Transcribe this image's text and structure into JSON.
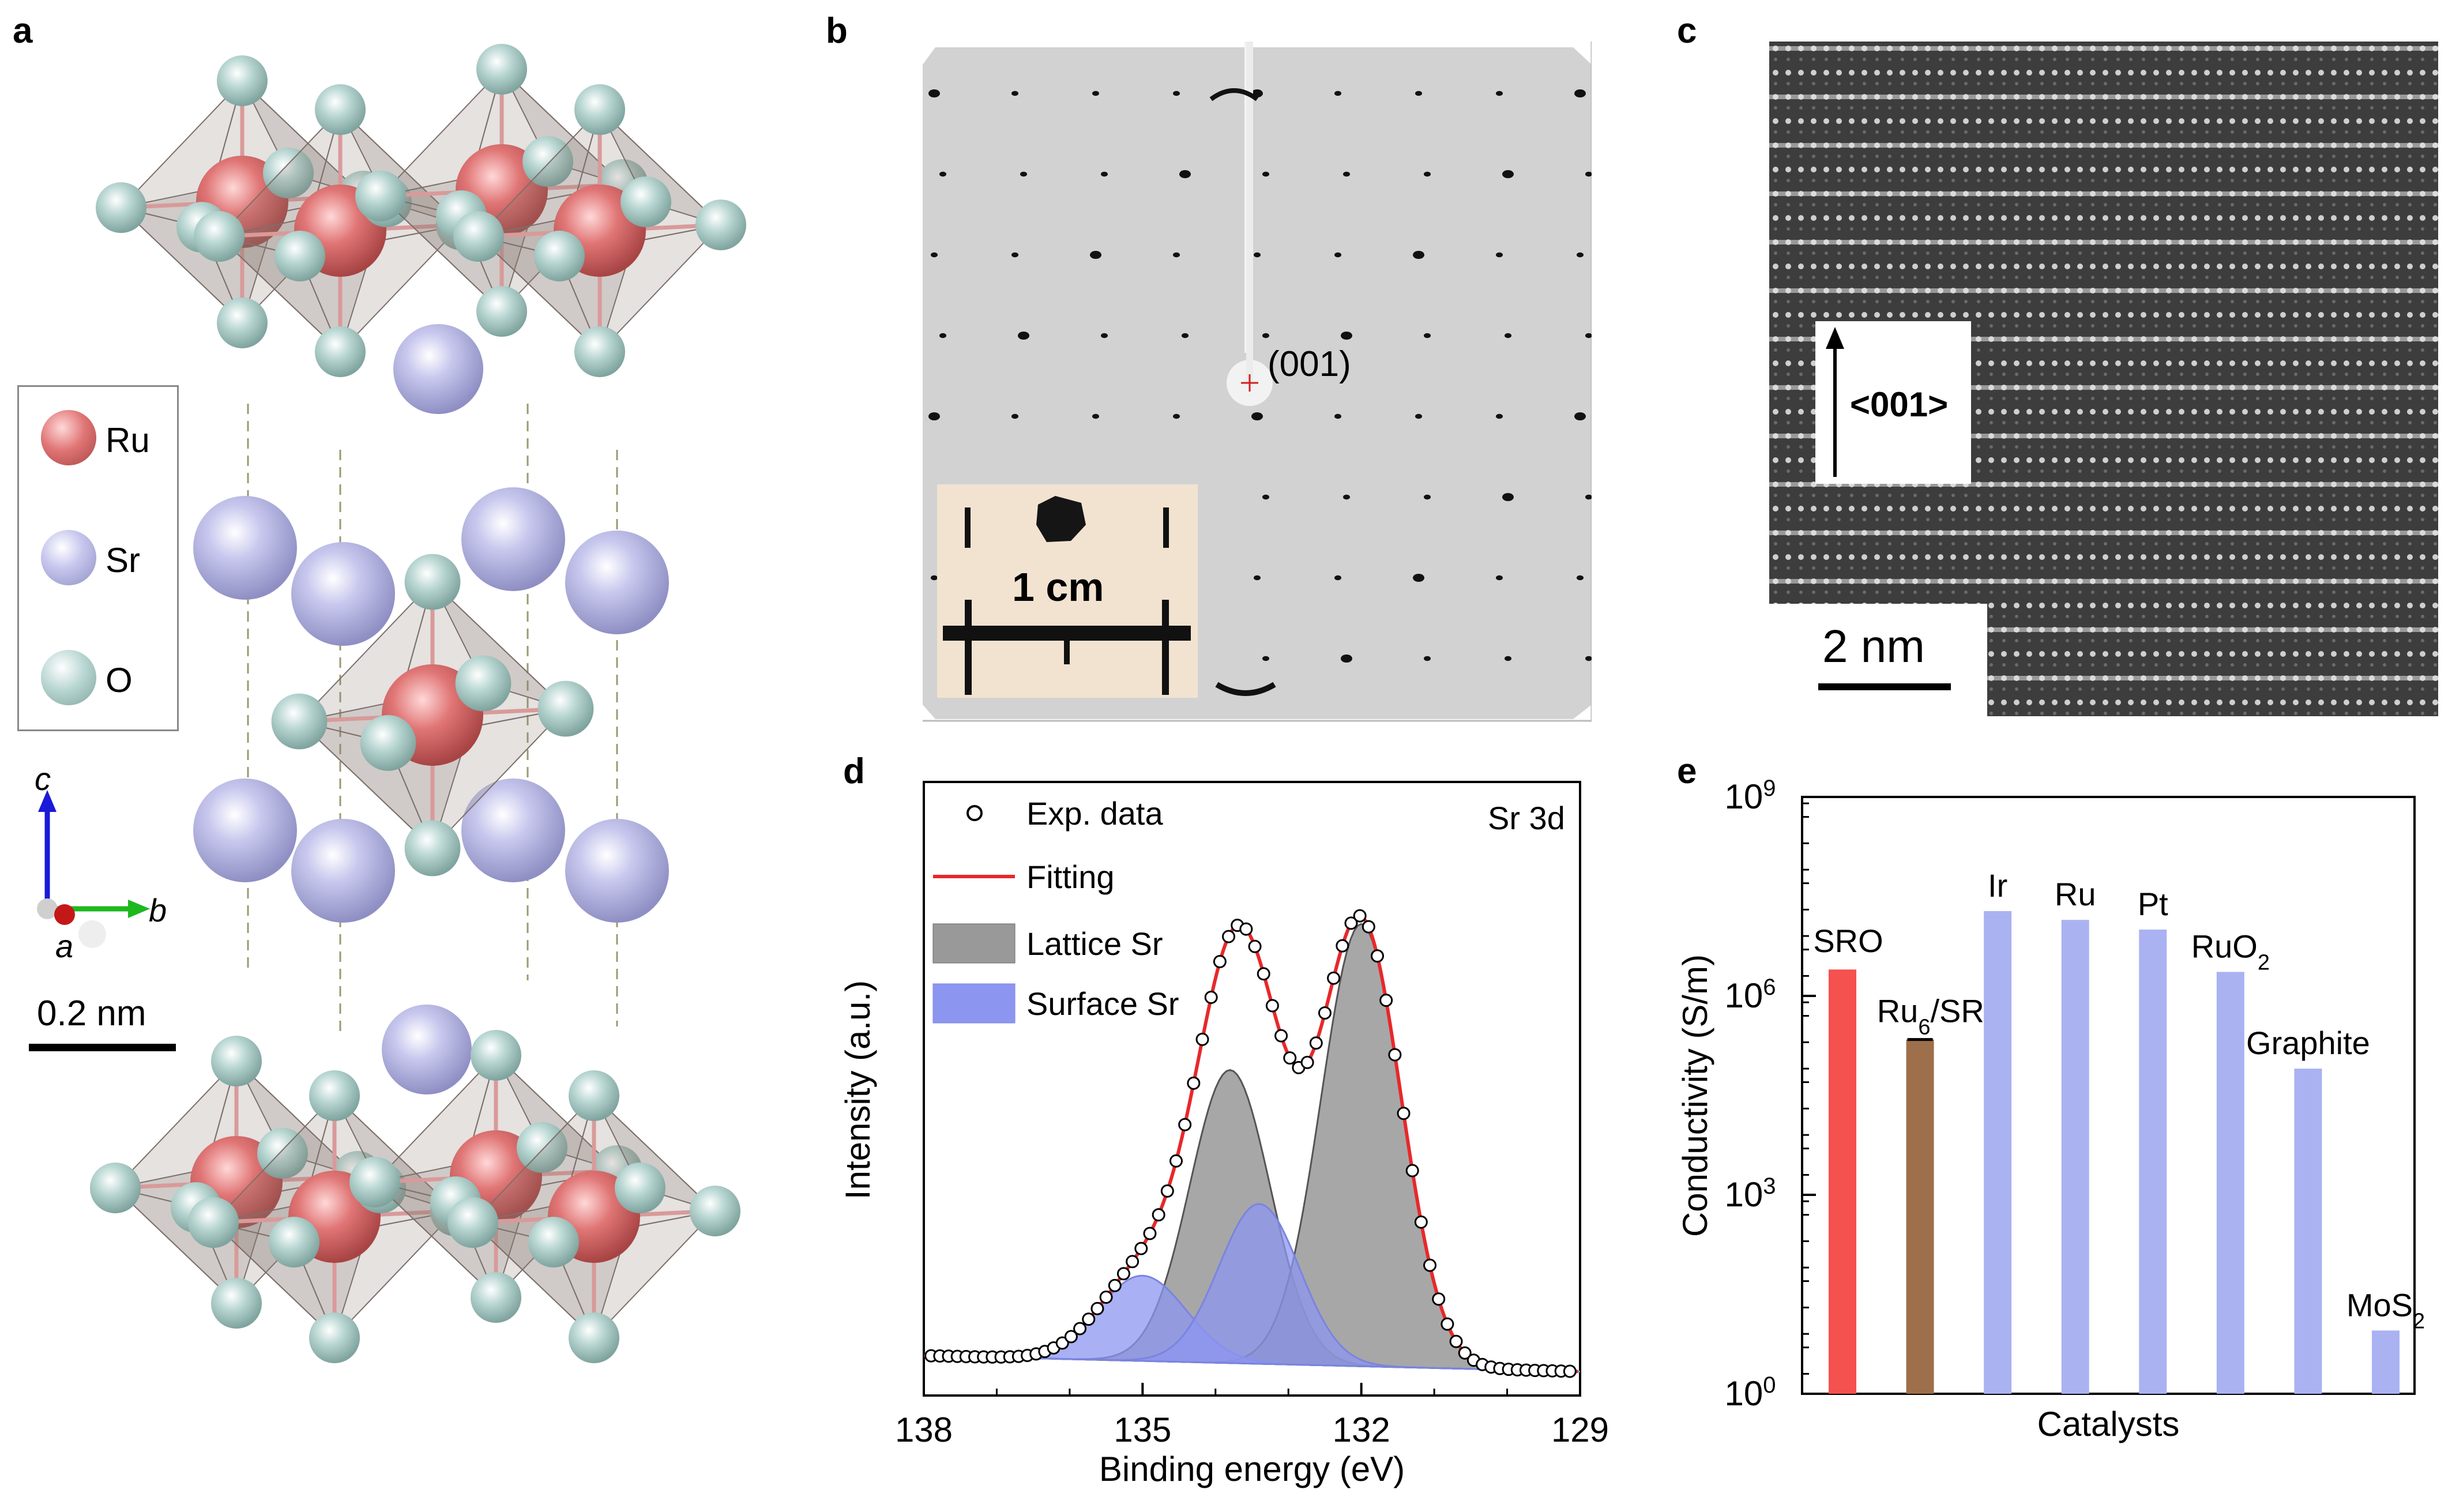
{
  "panel_labels": [
    "a",
    "b",
    "c",
    "d",
    "e"
  ],
  "panel_a": {
    "legend": [
      {
        "name": "Ru",
        "color": "#e07070"
      },
      {
        "name": "Sr",
        "color": "#c6c6ee"
      },
      {
        "name": "O",
        "color": "#b8d6d2"
      }
    ],
    "axes": {
      "c": "c",
      "a": "a",
      "b": "b"
    },
    "scale_bar": "0.2 nm"
  },
  "panel_b": {
    "spot_label": "(001)",
    "inset_scale": "1 cm"
  },
  "panel_c": {
    "direction_label": "<001>",
    "scale_bar": "2 nm"
  },
  "chart_data": [
    {
      "panel": "d",
      "type": "line",
      "annotation": "Sr 3d",
      "xlabel": "Binding energy (eV)",
      "ylabel": "Intensity (a.u.)",
      "xlim": [
        138,
        129
      ],
      "x_ticks": [
        "138",
        "135",
        "132",
        "129"
      ],
      "x_reversed": true,
      "legend": [
        "Exp. data",
        "Fitting",
        "Lattice Sr",
        "Surface Sr"
      ],
      "legend_placement": "top-left",
      "colors": {
        "exp": "#000000",
        "fit": "#e8282a",
        "lattice": "#808080",
        "surface": "#8c96f0"
      },
      "components": [
        {
          "name": "Lattice Sr",
          "center": 133.8,
          "height": 0.55,
          "width": 0.55
        },
        {
          "name": "Lattice Sr",
          "center": 132.0,
          "height": 0.83,
          "width": 0.55
        },
        {
          "name": "Surface Sr",
          "center": 135.0,
          "height": 0.16,
          "width": 0.6
        },
        {
          "name": "Surface Sr",
          "center": 133.4,
          "height": 0.3,
          "width": 0.55
        }
      ],
      "baseline": {
        "x": [
          138,
          129
        ],
        "y": [
          0.01,
          -0.02
        ]
      }
    },
    {
      "panel": "e",
      "type": "bar",
      "ylabel": "Conductivity (S/m)",
      "xlabel": "Catalysts",
      "y_scale": "log",
      "ylim": [
        1,
        1000000000
      ],
      "y_ticks": [
        {
          "base": "10",
          "exp": "0",
          "value": 1
        },
        {
          "base": "10",
          "exp": "3",
          "value": 1000
        },
        {
          "base": "10",
          "exp": "6",
          "value": 1000000
        },
        {
          "base": "10",
          "exp": "9",
          "value": 1000000000
        }
      ],
      "categories": [
        {
          "label": "SRO",
          "sub": "",
          "rest": "",
          "value": 2500000,
          "color": "#f5514f"
        },
        {
          "label": "Ru",
          "sub": "6",
          "rest": "/SRO",
          "value": 220000,
          "color": "#9d6f4a",
          "error": true
        },
        {
          "label": "Ir",
          "sub": "",
          "rest": "",
          "value": 19000000,
          "color": "#aab2f2"
        },
        {
          "label": "Ru",
          "sub": "",
          "rest": "",
          "value": 14000000,
          "color": "#aab2f2"
        },
        {
          "label": "Pt",
          "sub": "",
          "rest": "",
          "value": 10000000,
          "color": "#aab2f2"
        },
        {
          "label": "RuO",
          "sub": "2",
          "rest": "",
          "value": 2300000,
          "color": "#aab2f2"
        },
        {
          "label": "Graphite",
          "sub": "",
          "rest": "",
          "value": 80000,
          "color": "#aab2f2"
        },
        {
          "label": "MoS",
          "sub": "2",
          "rest": "",
          "value": 9,
          "color": "#aab2f2"
        }
      ]
    }
  ]
}
